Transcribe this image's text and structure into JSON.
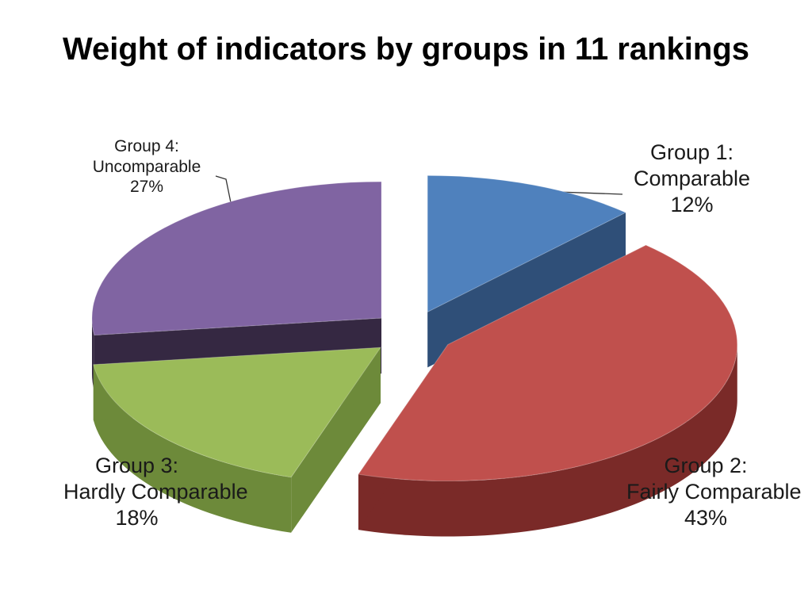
{
  "chart_data": {
    "type": "pie",
    "title": "Weight of indicators by groups in 11 rankings",
    "slices": [
      {
        "name": "Group 1:",
        "desc": "Comparable",
        "value": 12,
        "value_label": "12%",
        "top": "#4f81bd",
        "side": "#2f4f78"
      },
      {
        "name": "Group 2:",
        "desc": "Fairly Comparable",
        "value": 43,
        "value_label": "43%",
        "top": "#c0504d",
        "side": "#7a2a28"
      },
      {
        "name": "Group 3:",
        "desc": "Hardly Comparable",
        "value": 18,
        "value_label": "18%",
        "top": "#9bbb59",
        "side": "#6d8a3a"
      },
      {
        "name": "Group 4:",
        "desc": "Uncomparable",
        "value": 27,
        "value_label": "27%",
        "top": "#8064a2",
        "side": "#352842"
      }
    ],
    "start_angle_deg": 270,
    "direction": "clockwise",
    "style": "3d-exploded",
    "legend": "none"
  }
}
